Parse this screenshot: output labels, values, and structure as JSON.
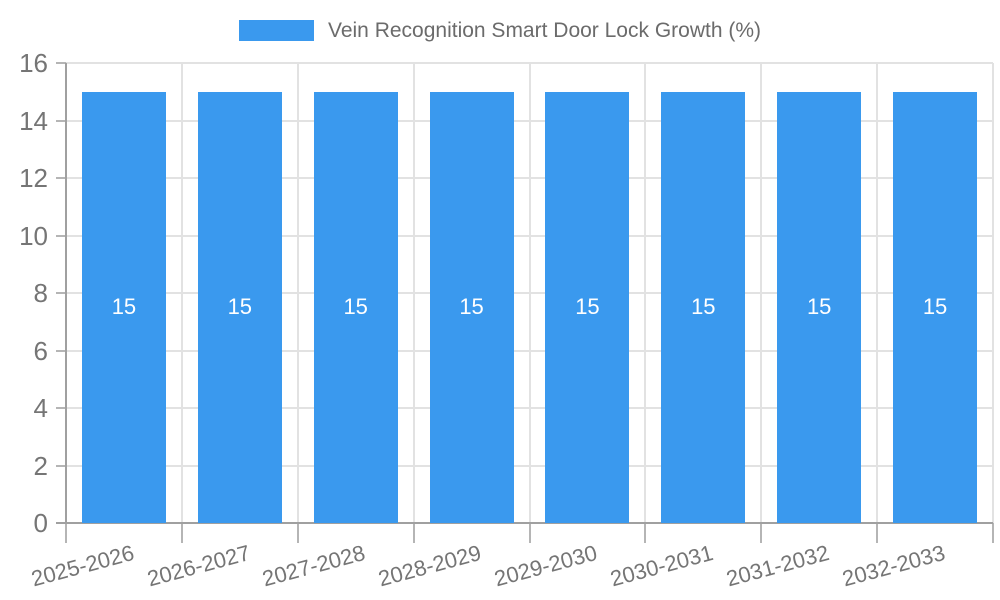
{
  "chart_data": {
    "type": "bar",
    "title": "",
    "categories": [
      "2025-2026",
      "2026-2027",
      "2027-2028",
      "2028-2029",
      "2029-2030",
      "2030-2031",
      "2031-2032",
      "2032-2033"
    ],
    "series": [
      {
        "name": "Vein Recognition Smart Door Lock Growth (%)",
        "values": [
          15,
          15,
          15,
          15,
          15,
          15,
          15,
          15
        ]
      }
    ],
    "bar_value_labels": [
      "15",
      "15",
      "15",
      "15",
      "15",
      "15",
      "15",
      "15"
    ],
    "xlabel": "",
    "ylabel": "",
    "ylim": [
      0,
      16
    ],
    "yticks": [
      0,
      2,
      4,
      6,
      8,
      10,
      12,
      14,
      16
    ],
    "grid": true,
    "legend_position": "top",
    "x_label_rotation_deg": -15,
    "colors": {
      "bar": "#3a99ee",
      "bar_label": "#ffffff",
      "grid": "#e2e2e2",
      "axis": "#a0a0a0",
      "tick": "#b5b5b5",
      "tick_label": "#757575",
      "legend_text": "#6b6b6b",
      "background": "#ffffff"
    }
  }
}
